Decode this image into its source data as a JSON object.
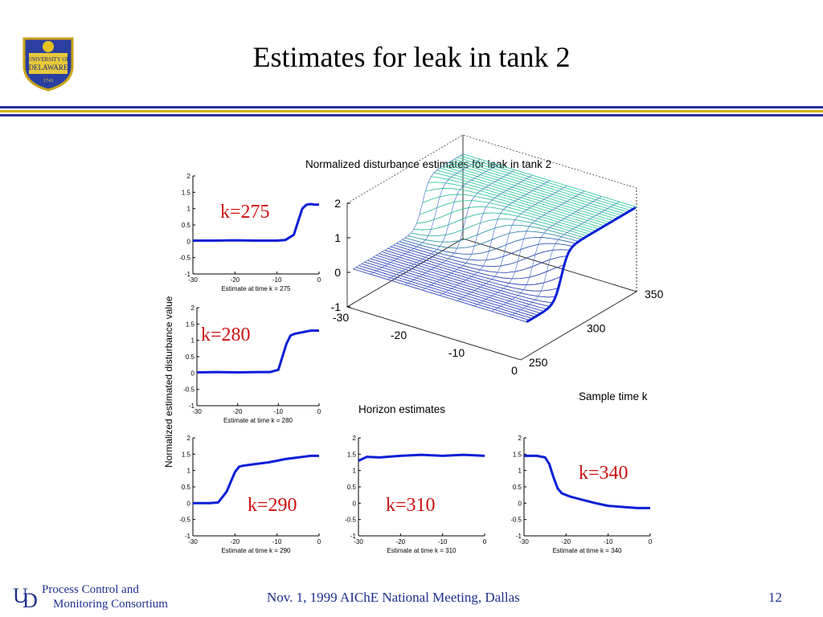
{
  "slide": {
    "title": "Estimates for leak in tank 2",
    "page_number": "12"
  },
  "logo": {
    "text_lines": [
      "UNIVERSITY OF",
      "DELAWARE",
      "1743"
    ]
  },
  "footer": {
    "org_line1": "Process Control and",
    "org_line2": "Monitoring Consortium",
    "center": "Nov. 1, 1999 AIChE National Meeting, Dallas"
  },
  "colors": {
    "rule_blue": "#2b2f9e",
    "rule_gold": "#d4b21e",
    "footer_text": "#1f2f8f",
    "series_blue": "#0a1fd6",
    "annotation_red": "#cc1111",
    "surface_low": "#2a3fb6",
    "surface_high": "#37c8a0"
  },
  "shared_ylabel": "Normalized estimated disturbance value",
  "chart_data": [
    {
      "type": "line",
      "annotation": "k=275",
      "xlabel": "Estimate at time k = 275",
      "xlim": [
        -30,
        0
      ],
      "ylim": [
        -1,
        2
      ],
      "x_ticks": [
        "-30",
        "-20",
        "-10",
        "0"
      ],
      "y_ticks": [
        "2",
        "1.5",
        "1",
        "0.5",
        "0",
        "-0.5",
        "-1"
      ],
      "x": [
        -30,
        -25,
        -20,
        -15,
        -10,
        -8,
        -6,
        -5,
        -4,
        -3,
        -2,
        -1,
        0
      ],
      "y": [
        0.02,
        0.02,
        0.03,
        0.02,
        0.02,
        0.04,
        0.2,
        0.6,
        1.0,
        1.12,
        1.14,
        1.12,
        1.12
      ]
    },
    {
      "type": "line",
      "annotation": "k=280",
      "xlabel": "Estimate at time k = 280",
      "xlim": [
        -30,
        0
      ],
      "ylim": [
        -1,
        2
      ],
      "x_ticks": [
        "-30",
        "-20",
        "-10",
        "0"
      ],
      "y_ticks": [
        "2",
        "1.5",
        "1",
        "0.5",
        "0",
        "-0.5",
        "-1"
      ],
      "x": [
        -30,
        -25,
        -20,
        -15,
        -12,
        -10,
        -9,
        -8,
        -7,
        -6,
        -4,
        -2,
        0
      ],
      "y": [
        0.02,
        0.03,
        0.02,
        0.03,
        0.03,
        0.1,
        0.5,
        0.9,
        1.15,
        1.2,
        1.25,
        1.3,
        1.3
      ]
    },
    {
      "type": "line",
      "annotation": "k=290",
      "xlabel": "Estimate at time k = 290",
      "xlim": [
        -30,
        0
      ],
      "ylim": [
        -1,
        2
      ],
      "x_ticks": [
        "-30",
        "-20",
        "-10",
        "0"
      ],
      "y_ticks": [
        "2",
        "1.5",
        "1",
        "0.5",
        "0",
        "-0.5",
        "-1"
      ],
      "x": [
        -30,
        -26,
        -24,
        -22,
        -20,
        -19,
        -18,
        -15,
        -12,
        -10,
        -8,
        -5,
        -2,
        0
      ],
      "y": [
        0.0,
        0.0,
        0.02,
        0.35,
        0.95,
        1.12,
        1.15,
        1.2,
        1.25,
        1.3,
        1.35,
        1.4,
        1.45,
        1.45
      ]
    },
    {
      "type": "line",
      "annotation": "k=310",
      "xlabel": "Estimate at time k = 310",
      "xlim": [
        -30,
        0
      ],
      "ylim": [
        -1,
        2
      ],
      "x_ticks": [
        "-30",
        "-20",
        "-10",
        "0"
      ],
      "y_ticks": [
        "2",
        "1.5",
        "1",
        "0.5",
        "0",
        "-0.5",
        "-1"
      ],
      "x": [
        -30,
        -28,
        -25,
        -20,
        -15,
        -10,
        -5,
        0
      ],
      "y": [
        1.3,
        1.42,
        1.4,
        1.45,
        1.48,
        1.45,
        1.48,
        1.45
      ]
    },
    {
      "type": "line",
      "annotation": "k=340",
      "xlabel": "Estimate at time k = 340",
      "xlim": [
        -30,
        0
      ],
      "ylim": [
        -1,
        2
      ],
      "x_ticks": [
        "-30",
        "-20",
        "-10",
        "0"
      ],
      "y_ticks": [
        "2",
        "1.5",
        "1",
        "0.5",
        "0",
        "-0.5",
        "-1"
      ],
      "x": [
        -30,
        -27,
        -25,
        -24,
        -23,
        -22,
        -21,
        -19,
        -16,
        -13,
        -10,
        -6,
        -3,
        0
      ],
      "y": [
        1.45,
        1.45,
        1.4,
        1.2,
        0.8,
        0.45,
        0.3,
        0.2,
        0.1,
        0.0,
        -0.08,
        -0.12,
        -0.15,
        -0.15
      ]
    },
    {
      "type": "surface3d",
      "title": "Normalized disturbance estimates for leak in tank 2",
      "xlabel": "Horizon estimates",
      "ylabel": "Sample time k",
      "x_ticks": [
        "-30",
        "-20",
        "-10",
        "0"
      ],
      "y_ticks": [
        "250",
        "300",
        "350"
      ],
      "z_ticks": [
        "2",
        "1",
        "0",
        "-1"
      ],
      "xlim": [
        -30,
        0
      ],
      "ylim": [
        250,
        350
      ],
      "zlim": [
        -1,
        2
      ],
      "step_time_k": 285,
      "low_level": 0.0,
      "high_level": 1.45
    }
  ]
}
